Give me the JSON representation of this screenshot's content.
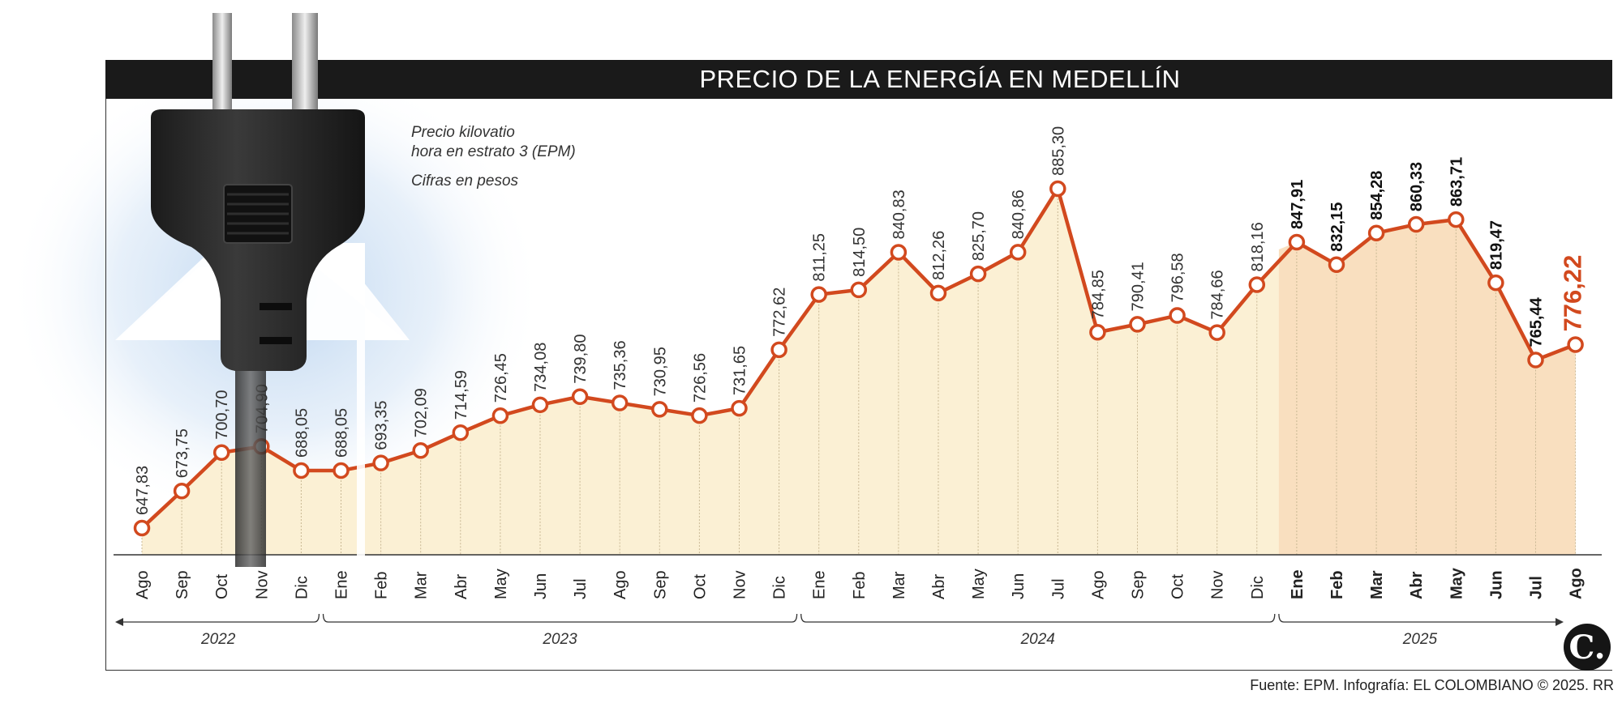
{
  "header": {
    "title": "PRECIO DE LA ENERGÍA EN MEDELLÍN",
    "subtitle_line1": "Precio kilovatio",
    "subtitle_line2": "hora en estrato 3 (EPM)",
    "units": "Cifras en pesos"
  },
  "footer": {
    "source": "Fuente: EPM. Infografía: EL COLOMBIANO © 2025. RR",
    "logo_text": "C."
  },
  "colors": {
    "line": "#d2491e",
    "area": "#fbf0d4",
    "highlight_area": "#f9dfbf",
    "title_bg": "#1a1a1a"
  },
  "icons": [
    "power-plug-icon",
    "up-arrow-icon",
    "el-colombiano-logo-icon"
  ],
  "chart_data": {
    "type": "area",
    "title": "PRECIO DE LA ENERGÍA EN MEDELLÍN",
    "xlabel": "",
    "ylabel": "",
    "ylim": [
      600,
      920
    ],
    "grid": false,
    "categories": [
      "Ago",
      "Sep",
      "Oct",
      "Nov",
      "Dic",
      "Ene",
      "Feb",
      "Mar",
      "Abr",
      "May",
      "Jun",
      "Jul",
      "Ago",
      "Sep",
      "Oct",
      "Nov",
      "Dic",
      "Ene",
      "Feb",
      "Mar",
      "Abr",
      "May",
      "Jun",
      "Jul",
      "Ago",
      "Sep",
      "Oct",
      "Nov",
      "Dic",
      "Ene",
      "Feb",
      "Mar",
      "Abr",
      "May",
      "Jun",
      "Jul",
      "Ago"
    ],
    "values": [
      647.83,
      673.75,
      700.7,
      704.9,
      688.05,
      688.05,
      693.35,
      702.09,
      714.59,
      726.45,
      734.08,
      739.8,
      735.36,
      730.95,
      726.56,
      731.65,
      772.62,
      811.25,
      814.5,
      840.83,
      812.26,
      825.7,
      840.86,
      885.3,
      784.85,
      790.41,
      796.58,
      784.66,
      818.16,
      847.91,
      832.15,
      854.28,
      860.33,
      863.71,
      819.47,
      765.44,
      776.22
    ],
    "value_labels": [
      "647,83",
      "673,75",
      "700,70",
      "704,90",
      "688,05",
      "688,05",
      "693,35",
      "702,09",
      "714,59",
      "726,45",
      "734,08",
      "739,80",
      "735,36",
      "730,95",
      "726,56",
      "731,65",
      "772,62",
      "811,25",
      "814,50",
      "840,83",
      "812,26",
      "825,70",
      "840,86",
      "885,30",
      "784,85",
      "790,41",
      "796,58",
      "784,66",
      "818,16",
      "847,91",
      "832,15",
      "854,28",
      "860,33",
      "863,71",
      "819,47",
      "765,44",
      "776,22"
    ],
    "years": [
      {
        "label": "2022",
        "start": 0,
        "end": 4
      },
      {
        "label": "2023",
        "start": 5,
        "end": 16
      },
      {
        "label": "2024",
        "start": 17,
        "end": 28
      },
      {
        "label": "2025",
        "start": 29,
        "end": 36
      }
    ],
    "highlight_start": 29
  }
}
